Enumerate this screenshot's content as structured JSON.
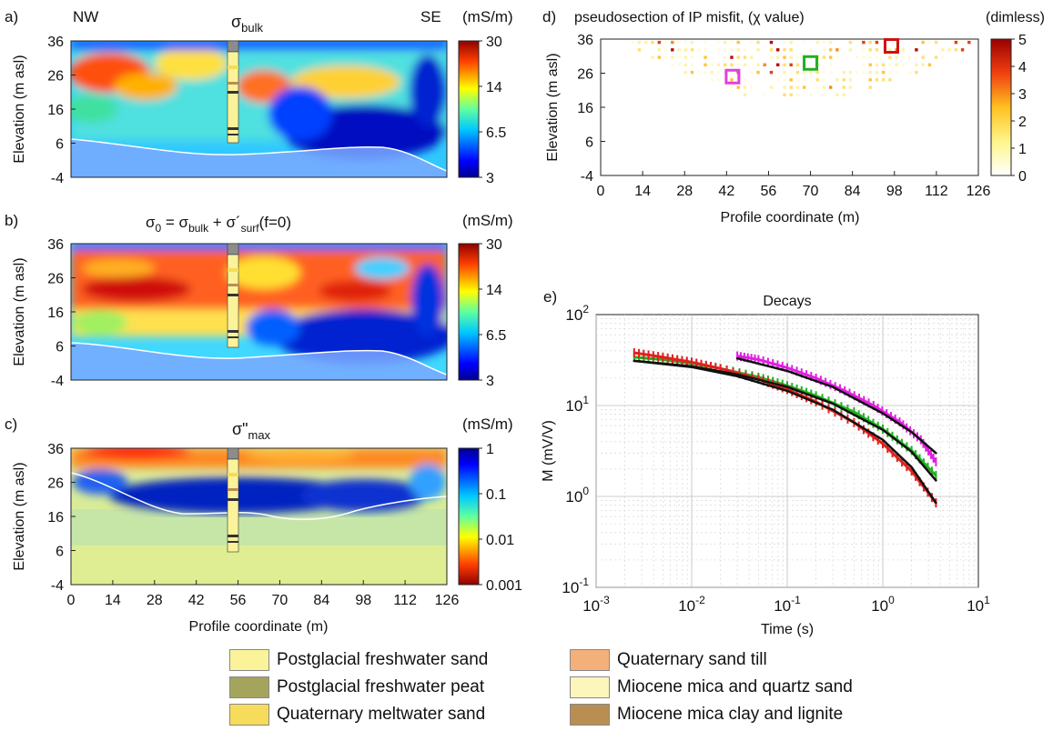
{
  "panels": {
    "a": {
      "letter": "a)",
      "title": "σ",
      "title_sub": "bulk",
      "left_label": "NW",
      "right_label": "SE",
      "ylabel": "Elevation (m asl)",
      "yticks": [
        "36",
        "26",
        "16",
        "6",
        "-4"
      ],
      "cb_unit": "(mS/m)",
      "cb_ticks": [
        "30",
        "14",
        "6.5",
        "3"
      ]
    },
    "b": {
      "letter": "b)",
      "title_parts": [
        "σ",
        "0",
        " = σ",
        "bulk",
        " + σ´",
        "surf",
        "(f=0)"
      ],
      "ylabel": "Elevation (m asl)",
      "yticks": [
        "36",
        "26",
        "16",
        "6",
        "-4"
      ],
      "cb_unit": "(mS/m)",
      "cb_ticks": [
        "30",
        "14",
        "6.5",
        "3"
      ]
    },
    "c": {
      "letter": "c)",
      "title": "σ\"",
      "title_sub": "max",
      "ylabel": "Elevation (m asl)",
      "yticks": [
        "36",
        "26",
        "16",
        "6",
        "-4"
      ],
      "xticks": [
        "0",
        "14",
        "28",
        "42",
        "56",
        "70",
        "84",
        "98",
        "112",
        "126"
      ],
      "xlabel": "Profile coordinate (m)",
      "cb_unit": "(mS/m)",
      "cb_ticks": [
        "1",
        "0.1",
        "0.01",
        "0.001"
      ]
    },
    "d": {
      "letter": "d)",
      "title": "pseudosection of IP misfit, (χ value)",
      "ylabel": "Elevation (m asl)",
      "yticks": [
        "36",
        "26",
        "16",
        "6",
        "-4"
      ],
      "xticks": [
        "0",
        "14",
        "28",
        "42",
        "56",
        "70",
        "84",
        "98",
        "112",
        "126"
      ],
      "xlabel": "Profile coordinate (m)",
      "cb_unit": "(dimless)",
      "cb_ticks": [
        "5",
        "4",
        "3",
        "2",
        "1",
        "0"
      ]
    },
    "e": {
      "letter": "e)",
      "title": "Decays",
      "ylabel": "M (mV/V)",
      "xlabel": "Time (s)"
    }
  },
  "chart_data": [
    {
      "type": "heatmap",
      "panel": "a",
      "title": "σ bulk",
      "xlabel": "",
      "ylabel": "Elevation (m asl)",
      "xlim": [
        0,
        126
      ],
      "ylim": [
        -4,
        36
      ],
      "color_range": [
        3,
        30
      ],
      "color_scale": "log",
      "units": "mS/m"
    },
    {
      "type": "heatmap",
      "panel": "b",
      "title": "σ0 = σbulk + σ´surf(f=0)",
      "xlabel": "",
      "ylabel": "Elevation (m asl)",
      "xlim": [
        0,
        126
      ],
      "ylim": [
        -4,
        36
      ],
      "color_range": [
        3,
        30
      ],
      "color_scale": "log",
      "units": "mS/m"
    },
    {
      "type": "heatmap",
      "panel": "c",
      "title": "σ\" max",
      "xlabel": "Profile coordinate (m)",
      "ylabel": "Elevation (m asl)",
      "xlim": [
        0,
        126
      ],
      "ylim": [
        -4,
        36
      ],
      "color_range": [
        0.001,
        1
      ],
      "color_scale": "log",
      "units": "mS/m"
    },
    {
      "type": "heatmap",
      "panel": "d",
      "title": "pseudosection of IP misfit, (χ value)",
      "xlabel": "Profile coordinate (m)",
      "ylabel": "Elevation (m asl)",
      "xlim": [
        0,
        126
      ],
      "ylim": [
        -4,
        36
      ],
      "color_range": [
        0,
        5
      ],
      "units": "dimless",
      "highlighted_cells": [
        {
          "color": "#e040e0",
          "x": 44,
          "y": 25
        },
        {
          "color": "#20b020",
          "x": 70,
          "y": 29
        },
        {
          "color": "#d01010",
          "x": 97,
          "y": 34
        }
      ]
    },
    {
      "type": "line",
      "panel": "e",
      "title": "Decays",
      "xlabel": "Time (s)",
      "ylabel": "M (mV/V)",
      "xscale": "log",
      "yscale": "log",
      "xlim": [
        0.001,
        10
      ],
      "ylim": [
        0.1,
        100
      ],
      "xticks": [
        0.001,
        0.01,
        0.1,
        1,
        10
      ],
      "yticks": [
        0.1,
        1,
        10,
        100
      ],
      "grid": true,
      "series": [
        {
          "color": "#e020e0",
          "kind": "data",
          "x": [
            0.03,
            0.05,
            0.1,
            0.2,
            0.4,
            0.8,
            1.5,
            2.5,
            3.6
          ],
          "y": [
            35,
            32,
            26,
            20,
            14.5,
            10,
            6.6,
            4.2,
            2.4
          ]
        },
        {
          "color": "#20b020",
          "kind": "data",
          "x": [
            0.0025,
            0.005,
            0.01,
            0.02,
            0.05,
            0.1,
            0.2,
            0.5,
            1,
            2,
            3.6
          ],
          "y": [
            34,
            32,
            29,
            25.5,
            20.5,
            16.5,
            12.8,
            8.5,
            5.5,
            3.2,
            1.7
          ]
        },
        {
          "color": "#e02020",
          "kind": "data",
          "x": [
            0.0025,
            0.005,
            0.01,
            0.02,
            0.05,
            0.1,
            0.2,
            0.5,
            1,
            2,
            3.6
          ],
          "y": [
            38,
            34,
            30,
            25.5,
            19.5,
            15,
            11,
            6.5,
            3.8,
            1.9,
            0.85
          ]
        },
        {
          "color": "#111111",
          "kind": "fit",
          "x": [
            0.03,
            0.1,
            0.3,
            1,
            2,
            3.6
          ],
          "y": [
            33,
            24,
            16,
            8.2,
            5.1,
            3.0
          ]
        },
        {
          "color": "#111111",
          "kind": "fit",
          "x": [
            0.0025,
            0.01,
            0.03,
            0.1,
            0.3,
            1,
            2,
            3.6
          ],
          "y": [
            31,
            27,
            22,
            16,
            10.5,
            5.4,
            3.1,
            1.5
          ]
        },
        {
          "color": "#111111",
          "kind": "fit",
          "x": [
            0.0025,
            0.01,
            0.03,
            0.1,
            0.3,
            1,
            2,
            3.6
          ],
          "y": [
            31,
            26.5,
            21,
            14.5,
            9,
            4.2,
            2.1,
            0.85
          ]
        }
      ]
    }
  ],
  "lithology": {
    "colors": {
      "freshwater_sand": "#fbf39a",
      "freshwater_peat": "#a5a45d",
      "meltwater_sand": "#f6dc5a",
      "sand_till": "#f4b07a",
      "mica_quartz_sand": "#fcf6bd",
      "clay_lignite": "#b98e52",
      "top": "#8c8c8c"
    },
    "legend": [
      {
        "label": "Postglacial freshwater sand",
        "color": "#fbf39a"
      },
      {
        "label": "Postglacial freshwater peat",
        "color": "#a5a45d"
      },
      {
        "label": "Quaternary meltwater sand",
        "color": "#f6dc5a"
      },
      {
        "label": "Quaternary sand till",
        "color": "#f4b07a"
      },
      {
        "label": "Miocene mica and quartz sand",
        "color": "#fcf6bd"
      },
      {
        "label": "Miocene mica clay and lignite",
        "color": "#b98e52"
      }
    ]
  }
}
